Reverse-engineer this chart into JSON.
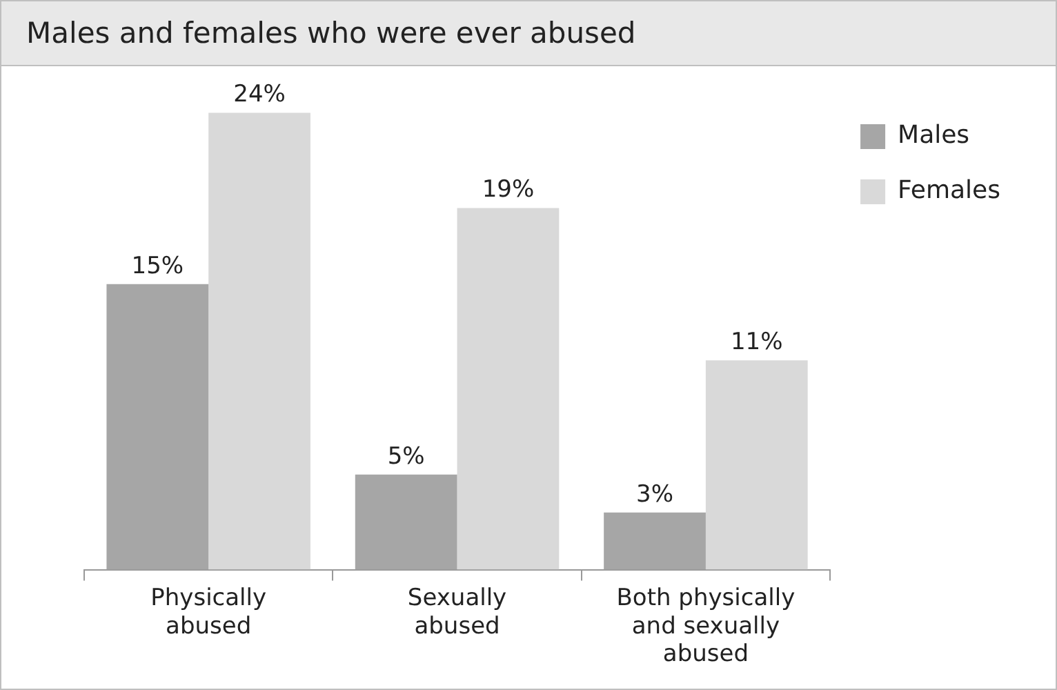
{
  "chart_data": {
    "type": "bar",
    "title": "Males and females who were ever abused",
    "categories": [
      "Physically abused",
      "Sexually abused",
      "Both physically and sexually abused"
    ],
    "series": [
      {
        "name": "Males",
        "color": "#a6a6a6",
        "values": [
          15,
          5,
          3
        ],
        "value_labels": [
          "15%",
          "5%",
          "3%"
        ]
      },
      {
        "name": "Females",
        "color": "#d9d9d9",
        "values": [
          24,
          19,
          11
        ],
        "value_labels": [
          "24%",
          "19%",
          "11%"
        ]
      }
    ],
    "legend": "right",
    "grid": false,
    "tick_labels": "x"
  }
}
